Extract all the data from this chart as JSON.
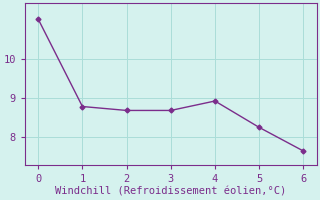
{
  "x": [
    0,
    1,
    2,
    3,
    4,
    5,
    6
  ],
  "y": [
    11.0,
    8.78,
    8.68,
    8.68,
    8.92,
    8.25,
    7.65
  ],
  "line_color": "#7b2d8b",
  "marker": "D",
  "marker_size": 2.5,
  "background_color": "#d5f2ee",
  "grid_color": "#aaddd8",
  "xlabel": "Windchill (Refroidissement éolien,°C)",
  "xlabel_color": "#7b2d8b",
  "tick_color": "#7b2d8b",
  "spine_color": "#7b2d8b",
  "xlim": [
    -0.3,
    6.3
  ],
  "ylim": [
    7.3,
    11.4
  ],
  "yticks": [
    8,
    9,
    10
  ],
  "xticks": [
    0,
    1,
    2,
    3,
    4,
    5,
    6
  ],
  "xlabel_fontsize": 7.5,
  "tick_fontsize": 7.5,
  "linewidth": 1.0,
  "linestyle": "-"
}
